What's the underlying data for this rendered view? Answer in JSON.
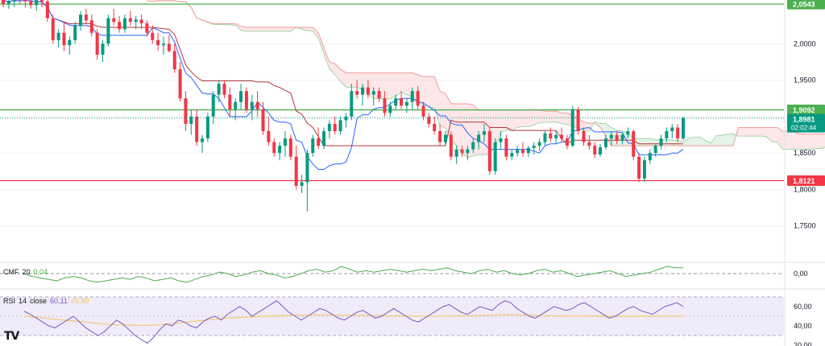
{
  "colors": {
    "bull": "#089981",
    "bear": "#f23645",
    "tenkan": "#2962ff",
    "kijun": "#b2373c",
    "span_a_line": "#a5d6a7",
    "span_b_line": "#ef9a9a",
    "cloud_bull": "rgba(76,175,80,0.15)",
    "cloud_bear": "rgba(242,54,69,0.12)",
    "level_green": "#4caf50",
    "level_red": "#f23645",
    "cmf_line": "#4caf50",
    "rsi_line": "#7e57c2",
    "rsi_ma": "#f7c35c",
    "rsi_band": "rgba(126,87,194,0.12)",
    "axis_text": "#131722",
    "grid": "#f0f3fa"
  },
  "indicators": {
    "cmf": {
      "name": "CMF",
      "length": "20",
      "value": "0,04"
    },
    "rsi": {
      "name": "RSI",
      "length": "14",
      "source": "close",
      "value": "60,11",
      "ma_value": "49,99"
    }
  },
  "logo": {
    "text": "TV"
  },
  "chart_data": {
    "type": "candlestick",
    "price_axis": {
      "range": [
        1.7,
        2.06
      ],
      "ticks": [
        "2,0000",
        "1,9500",
        "1,9000",
        "1,8500",
        "1,8000",
        "1,7500"
      ]
    },
    "horizontal_levels": [
      {
        "value": 2.0543,
        "label": "2,0543",
        "color": "#4caf50"
      },
      {
        "value": 1.9092,
        "label": "1,9092",
        "color": "#4caf50"
      },
      {
        "value": 1.8121,
        "label": "1,8121",
        "color": "#f23645"
      }
    ],
    "last_price": {
      "value": 1.8981,
      "label": "1,8981",
      "countdown": "02:02:44"
    },
    "candles": [
      [
        2.06,
        2.068,
        2.05,
        2.055
      ],
      [
        2.055,
        2.062,
        2.048,
        2.058
      ],
      [
        2.058,
        2.07,
        2.05,
        2.062
      ],
      [
        2.062,
        2.068,
        2.055,
        2.06
      ],
      [
        2.06,
        2.066,
        2.05,
        2.058
      ],
      [
        2.058,
        2.063,
        2.048,
        2.053
      ],
      [
        2.053,
        2.062,
        2.045,
        2.06
      ],
      [
        2.06,
        2.065,
        2.05,
        2.058
      ],
      [
        2.058,
        2.062,
        2.03,
        2.035
      ],
      [
        2.035,
        2.04,
        2.0,
        2.005
      ],
      [
        2.005,
        2.02,
        1.995,
        2.015
      ],
      [
        2.015,
        2.03,
        1.99,
        1.998
      ],
      [
        1.998,
        2.01,
        1.985,
        2.005
      ],
      [
        2.005,
        2.03,
        2.0,
        2.025
      ],
      [
        2.025,
        2.045,
        2.018,
        2.04
      ],
      [
        2.04,
        2.048,
        2.028,
        2.032
      ],
      [
        2.032,
        2.04,
        2.01,
        2.015
      ],
      [
        2.015,
        2.02,
        1.978,
        1.985
      ],
      [
        1.985,
        2.005,
        1.975,
        2.0
      ],
      [
        2.0,
        2.04,
        1.996,
        2.035
      ],
      [
        2.035,
        2.048,
        2.025,
        2.03
      ],
      [
        2.03,
        2.038,
        2.015,
        2.02
      ],
      [
        2.02,
        2.04,
        2.015,
        2.035
      ],
      [
        2.035,
        2.045,
        2.025,
        2.03
      ],
      [
        2.03,
        2.038,
        2.02,
        2.033
      ],
      [
        2.033,
        2.04,
        2.02,
        2.028
      ],
      [
        2.028,
        2.032,
        2.01,
        2.015
      ],
      [
        2.015,
        2.025,
        2.0,
        2.005
      ],
      [
        2.005,
        2.015,
        1.99,
        1.998
      ],
      [
        1.998,
        2.01,
        1.985,
        2.0
      ],
      [
        2.0,
        2.012,
        1.988,
        1.99
      ],
      [
        1.99,
        2.0,
        1.96,
        1.965
      ],
      [
        1.965,
        1.975,
        1.92,
        1.925
      ],
      [
        1.925,
        1.935,
        1.88,
        1.89
      ],
      [
        1.89,
        1.91,
        1.875,
        1.9
      ],
      [
        1.9,
        1.91,
        1.86,
        1.865
      ],
      [
        1.865,
        1.875,
        1.85,
        1.87
      ],
      [
        1.87,
        1.905,
        1.865,
        1.9
      ],
      [
        1.9,
        1.935,
        1.89,
        1.93
      ],
      [
        1.93,
        1.95,
        1.92,
        1.945
      ],
      [
        1.945,
        1.95,
        1.925,
        1.93
      ],
      [
        1.93,
        1.94,
        1.9,
        1.91
      ],
      [
        1.91,
        1.925,
        1.895,
        1.92
      ],
      [
        1.92,
        1.945,
        1.91,
        1.935
      ],
      [
        1.935,
        1.94,
        1.905,
        1.91
      ],
      [
        1.91,
        1.93,
        1.895,
        1.92
      ],
      [
        1.92,
        1.935,
        1.9,
        1.91
      ],
      [
        1.91,
        1.92,
        1.875,
        1.88
      ],
      [
        1.88,
        1.9,
        1.86,
        1.865
      ],
      [
        1.865,
        1.87,
        1.845,
        1.85
      ],
      [
        1.85,
        1.865,
        1.84,
        1.86
      ],
      [
        1.86,
        1.88,
        1.845,
        1.87
      ],
      [
        1.87,
        1.875,
        1.84,
        1.845
      ],
      [
        1.845,
        1.86,
        1.8,
        1.805
      ],
      [
        1.805,
        1.82,
        1.795,
        1.81
      ],
      [
        1.81,
        1.855,
        1.77,
        1.85
      ],
      [
        1.85,
        1.875,
        1.845,
        1.87
      ],
      [
        1.87,
        1.885,
        1.855,
        1.86
      ],
      [
        1.86,
        1.885,
        1.855,
        1.88
      ],
      [
        1.88,
        1.895,
        1.87,
        1.89
      ],
      [
        1.89,
        1.9,
        1.875,
        1.88
      ],
      [
        1.88,
        1.9,
        1.875,
        1.895
      ],
      [
        1.895,
        1.905,
        1.885,
        1.9
      ],
      [
        1.9,
        1.945,
        1.895,
        1.935
      ],
      [
        1.935,
        1.95,
        1.925,
        1.93
      ],
      [
        1.93,
        1.945,
        1.915,
        1.94
      ],
      [
        1.94,
        1.95,
        1.925,
        1.93
      ],
      [
        1.93,
        1.94,
        1.915,
        1.935
      ],
      [
        1.935,
        1.94,
        1.92,
        1.925
      ],
      [
        1.925,
        1.935,
        1.9,
        1.905
      ],
      [
        1.905,
        1.92,
        1.9,
        1.915
      ],
      [
        1.915,
        1.93,
        1.91,
        1.925
      ],
      [
        1.925,
        1.935,
        1.91,
        1.915
      ],
      [
        1.915,
        1.925,
        1.905,
        1.92
      ],
      [
        1.92,
        1.94,
        1.91,
        1.935
      ],
      [
        1.935,
        1.942,
        1.91,
        1.915
      ],
      [
        1.915,
        1.92,
        1.895,
        1.9
      ],
      [
        1.9,
        1.905,
        1.885,
        1.89
      ],
      [
        1.89,
        1.9,
        1.875,
        1.88
      ],
      [
        1.88,
        1.89,
        1.86,
        1.865
      ],
      [
        1.865,
        1.88,
        1.86,
        1.875
      ],
      [
        1.875,
        1.88,
        1.84,
        1.845
      ],
      [
        1.845,
        1.86,
        1.835,
        1.855
      ],
      [
        1.855,
        1.86,
        1.845,
        1.85
      ],
      [
        1.85,
        1.86,
        1.84,
        1.855
      ],
      [
        1.855,
        1.87,
        1.85,
        1.865
      ],
      [
        1.865,
        1.88,
        1.855,
        1.875
      ],
      [
        1.875,
        1.89,
        1.865,
        1.88
      ],
      [
        1.88,
        1.885,
        1.82,
        1.825
      ],
      [
        1.825,
        1.87,
        1.82,
        1.865
      ],
      [
        1.865,
        1.88,
        1.855,
        1.87
      ],
      [
        1.87,
        1.875,
        1.84,
        1.845
      ],
      [
        1.845,
        1.855,
        1.84,
        1.85
      ],
      [
        1.85,
        1.86,
        1.845,
        1.855
      ],
      [
        1.855,
        1.865,
        1.845,
        1.85
      ],
      [
        1.85,
        1.86,
        1.845,
        1.857
      ],
      [
        1.857,
        1.865,
        1.848,
        1.86
      ],
      [
        1.86,
        1.87,
        1.853,
        1.865
      ],
      [
        1.865,
        1.88,
        1.86,
        1.877
      ],
      [
        1.877,
        1.885,
        1.865,
        1.87
      ],
      [
        1.87,
        1.88,
        1.862,
        1.875
      ],
      [
        1.875,
        1.885,
        1.865,
        1.87
      ],
      [
        1.87,
        1.875,
        1.855,
        1.86
      ],
      [
        1.86,
        1.915,
        1.858,
        1.91
      ],
      [
        1.91,
        1.913,
        1.875,
        1.88
      ],
      [
        1.88,
        1.885,
        1.86,
        1.865
      ],
      [
        1.865,
        1.875,
        1.855,
        1.86
      ],
      [
        1.86,
        1.865,
        1.843,
        1.848
      ],
      [
        1.848,
        1.862,
        1.845,
        1.858
      ],
      [
        1.858,
        1.875,
        1.855,
        1.87
      ],
      [
        1.87,
        1.88,
        1.86,
        1.875
      ],
      [
        1.875,
        1.88,
        1.862,
        1.867
      ],
      [
        1.867,
        1.878,
        1.862,
        1.875
      ],
      [
        1.875,
        1.885,
        1.87,
        1.88
      ],
      [
        1.88,
        1.882,
        1.84,
        1.845
      ],
      [
        1.845,
        1.85,
        1.81,
        1.815
      ],
      [
        1.815,
        1.845,
        1.81,
        1.84
      ],
      [
        1.84,
        1.855,
        1.835,
        1.85
      ],
      [
        1.85,
        1.862,
        1.845,
        1.86
      ],
      [
        1.86,
        1.875,
        1.855,
        1.87
      ],
      [
        1.87,
        1.885,
        1.865,
        1.88
      ],
      [
        1.88,
        1.89,
        1.87,
        1.885
      ],
      [
        1.885,
        1.89,
        1.865,
        1.87
      ],
      [
        1.87,
        1.9,
        1.868,
        1.898
      ]
    ],
    "cmf": {
      "zero_label": "0,00",
      "values": [
        0.0,
        -0.02,
        -0.03,
        -0.04,
        -0.05,
        -0.03,
        -0.02,
        -0.03,
        -0.05,
        -0.06,
        -0.05,
        -0.04,
        -0.03,
        -0.04,
        -0.02,
        -0.03,
        -0.05,
        -0.04,
        -0.03,
        -0.05,
        -0.06,
        -0.04,
        -0.02,
        -0.01,
        0.01,
        0.0,
        -0.02,
        -0.01,
        0.01,
        0.02,
        0.0,
        -0.01,
        -0.03,
        -0.02,
        0.0,
        0.02,
        0.03,
        0.01,
        0.02,
        0.05,
        0.03,
        0.01,
        0.02,
        0.01,
        0.02,
        0.03,
        0.02,
        0.01,
        0.02,
        0.03,
        0.02,
        0.03,
        0.04,
        0.02,
        0.01,
        0.0,
        0.02,
        0.03,
        0.01,
        0.02,
        0.0,
        -0.01,
        0.0,
        0.02,
        0.03,
        0.01,
        0.02,
        0.0,
        -0.02,
        -0.01,
        0.0,
        0.01,
        0.02,
        0.0,
        -0.02,
        -0.01,
        0.0,
        0.01,
        0.03,
        0.05,
        0.04,
        0.04
      ]
    },
    "rsi": {
      "ticks": [
        "60,00",
        "40,00",
        "20,00"
      ],
      "band": [
        30,
        70
      ],
      "values": [
        55,
        52,
        48,
        44,
        40,
        38,
        42,
        46,
        50,
        44,
        38,
        34,
        30,
        34,
        40,
        46,
        42,
        36,
        30,
        26,
        22,
        28,
        36,
        42,
        40,
        46,
        44,
        40,
        38,
        44,
        48,
        50,
        46,
        52,
        56,
        60,
        56,
        50,
        54,
        58,
        62,
        66,
        60,
        54,
        50,
        46,
        50,
        54,
        58,
        56,
        52,
        48,
        46,
        50,
        54,
        56,
        52,
        48,
        50,
        54,
        58,
        54,
        50,
        46,
        44,
        48,
        52,
        56,
        60,
        62,
        58,
        54,
        52,
        56,
        60,
        58,
        56,
        62,
        66,
        64,
        58,
        54,
        50,
        48,
        52,
        56,
        60,
        58,
        56,
        58,
        62,
        64,
        60,
        56,
        52,
        48,
        50,
        54,
        58,
        60,
        56,
        54,
        52,
        56,
        60,
        62,
        64,
        60
      ],
      "ma": [
        50,
        49.5,
        49,
        48.3,
        47.5,
        46.8,
        46.2,
        45.7,
        45.2,
        44.6,
        44,
        43.3,
        42.6,
        42,
        41.5,
        41.2,
        41,
        40.8,
        40.6,
        40.5,
        40.6,
        40.8,
        41.2,
        41.7,
        42.3,
        43,
        43.7,
        44.4,
        45,
        45.7,
        46.3,
        46.9,
        47.4,
        47.9,
        48.3,
        48.7,
        49,
        49.3,
        49.6,
        49.9,
        50.2,
        50.5,
        50.7,
        50.9,
        51,
        51.1,
        51.2,
        51.3,
        51.3,
        51.3,
        51.2,
        51.1,
        51,
        50.9,
        50.8,
        50.8,
        50.7,
        50.6,
        50.6,
        50.5,
        50.5,
        50.4,
        50.3,
        50.2,
        50.1,
        50,
        50,
        50,
        50.1,
        50.2,
        50.3,
        50.4,
        50.5,
        50.6,
        50.8,
        51,
        51.2,
        51.4,
        51.5,
        51.5,
        51.4,
        51.3,
        51.1,
        50.9,
        50.7,
        50.5,
        50.4,
        50.3,
        50.2,
        50.1,
        50.1,
        50.2,
        50.3,
        50.3,
        50.2,
        50,
        49.9,
        49.8,
        49.8,
        49.9,
        50,
        50.1,
        50.1,
        50,
        50,
        49.99,
        49.99,
        49.99
      ]
    }
  }
}
